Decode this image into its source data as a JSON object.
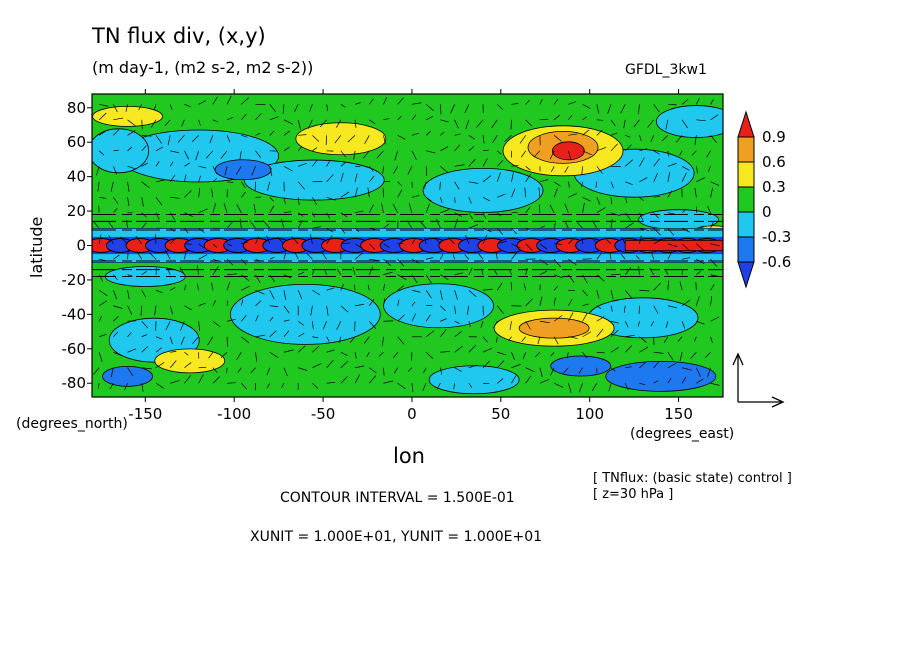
{
  "header": {
    "title": "TN flux div, (x,y)",
    "subtitle": "(m day-1, (m2 s-2, m2 s-2))",
    "model": "GFDL_3kw1"
  },
  "footer": {
    "contour_interval": "CONTOUR INTERVAL = 1.500E-01",
    "units": "XUNIT = 1.000E+01, YUNIT = 1.000E+01",
    "note_line1": "[ TNflux: (basic state) control ]",
    "note_line2": "[ z=30 hPa ]"
  },
  "chart_data": {
    "type": "heatmap",
    "title": "TN flux div, (x,y)",
    "subtitle": "(m day-1, (m2 s-2, m2 s-2))",
    "xlabel": "lon",
    "ylabel": "latitude",
    "x_unit_label": "(degrees_east)",
    "y_unit_label": "(degrees_north)",
    "xlim": [
      -180,
      175
    ],
    "ylim": [
      -88,
      88
    ],
    "x_ticks": [
      -150,
      -100,
      -50,
      0,
      50,
      100,
      150
    ],
    "x_tick_labels": [
      "-150",
      "-100",
      "-50",
      "0",
      "50",
      "100",
      "150"
    ],
    "y_ticks": [
      80,
      60,
      40,
      20,
      0,
      -20,
      -40,
      -60,
      -80
    ],
    "y_tick_labels": [
      "80",
      "60",
      "40",
      "20",
      "0",
      "-20",
      "-40",
      "-60",
      "-80"
    ],
    "colorbar": {
      "levels": [
        "0.9",
        "0.6",
        "0.3",
        "0",
        "-0.3",
        "-0.6"
      ],
      "colors": [
        "#e8201a",
        "#f0a020",
        "#f8e820",
        "#20c820",
        "#20c8f0",
        "#1e78f0",
        "#2040e8"
      ]
    },
    "contour_interval": 0.15,
    "vector_overlay": true,
    "features": [
      {
        "region": "equatorial band",
        "lat_range": [
          -5,
          5
        ],
        "description": "alternating strong positive (red) and negative (blue) cells"
      },
      {
        "region": "NH max",
        "lon": 85,
        "lat": 57,
        "value": 0.9
      },
      {
        "region": "NH high",
        "lon": -40,
        "lat": 62,
        "value": 0.45
      },
      {
        "region": "SH high",
        "lon": 80,
        "lat": -48,
        "value": 0.6
      },
      {
        "region": "SH high",
        "lon": -125,
        "lat": -67,
        "value": 0.45
      },
      {
        "region": "NH low",
        "lon": -95,
        "lat": 45,
        "value": -0.3
      },
      {
        "region": "SH low",
        "lon": 140,
        "lat": -75,
        "value": -0.6
      }
    ]
  }
}
